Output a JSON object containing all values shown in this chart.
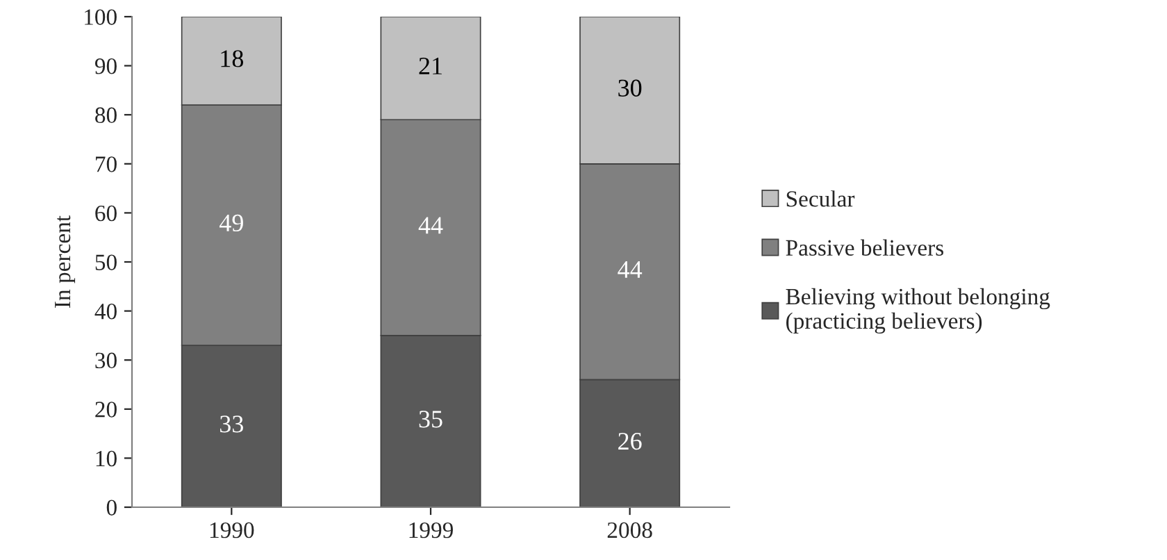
{
  "chart_data": {
    "type": "bar",
    "stacked": true,
    "ylabel": "In percent",
    "categories": [
      "1990",
      "1999",
      "2008"
    ],
    "series": [
      {
        "name": "Believing without belonging\n(practicing believers)",
        "color": "#595959",
        "values": [
          33,
          35,
          26
        ]
      },
      {
        "name": "Passive believers",
        "color": "#808080",
        "values": [
          49,
          44,
          44
        ]
      },
      {
        "name": "Secular",
        "color": "#c0c0c0",
        "values": [
          18,
          21,
          30
        ]
      }
    ],
    "ylim": [
      0,
      100
    ],
    "yticks": [
      0,
      10,
      20,
      30,
      40,
      50,
      60,
      70,
      80,
      90,
      100
    ],
    "data_labels": true,
    "grid": false,
    "legend": "right"
  }
}
